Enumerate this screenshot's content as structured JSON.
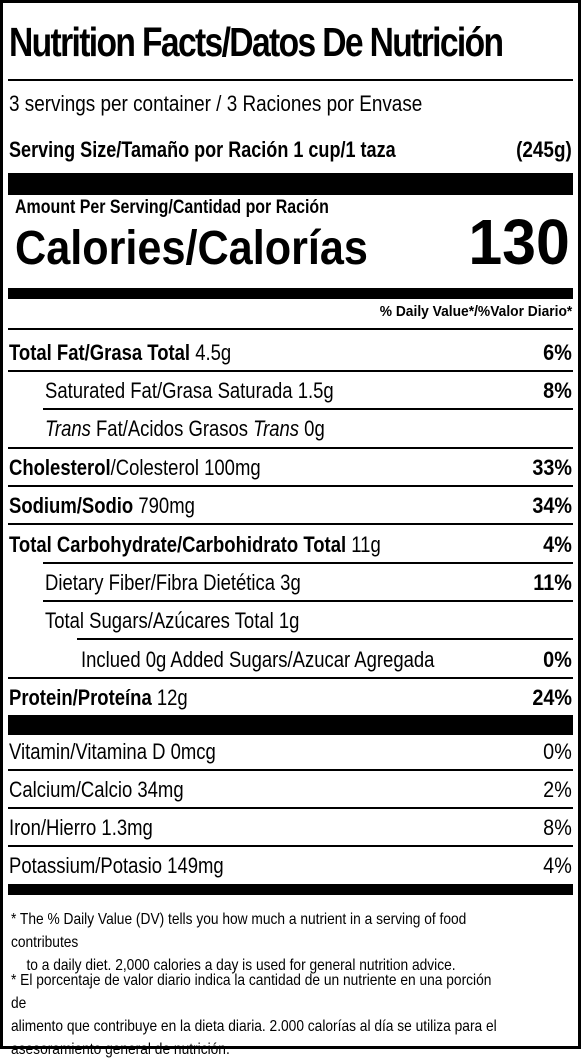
{
  "title": "Nutrition Facts/Datos De Nutrición",
  "servings": "3 servings per container / 3 Raciones por Envase",
  "serving_size": {
    "label": "Serving Size/Tamaño por Ración 1 cup/1 taza",
    "amount": "(245g)"
  },
  "amount_per": "Amount Per Serving/Cantidad por Ración",
  "calories": {
    "label": "Calories/Calorías",
    "value": "130"
  },
  "dv_header": "% Daily Value*/%Valor Diario*",
  "nutrients": {
    "total_fat": {
      "name": "Total Fat/Grasa Total",
      "amount": "4.5g",
      "pct": "6%"
    },
    "sat_fat": {
      "name": "Saturated Fat/Grasa Saturada",
      "amount": "1.5g",
      "pct": "8%"
    },
    "trans_fat": {
      "w1": "Trans",
      "mid": "Fat/Acidos Grasos",
      "w2": "Trans",
      "amount": "0g"
    },
    "cholesterol": {
      "name": "Cholesterol",
      "rest": "/Colesterol 100mg",
      "pct": "33%"
    },
    "sodium": {
      "name": "Sodium/Sodio",
      "amount": "790mg",
      "pct": "34%"
    },
    "carbs": {
      "name": "Total Carbohydrate/Carbohidrato Total",
      "amount": "11g",
      "pct": "4%"
    },
    "fiber": {
      "name": "Dietary Fiber/Fibra Dietética 3g",
      "pct": "11%"
    },
    "sugars": {
      "name": "Total Sugars/Azúcares Total 1g"
    },
    "added_sugars": {
      "name": "Inclued 0g Added Sugars/Azucar Agregada",
      "pct": "0%"
    },
    "protein": {
      "name": "Protein/Proteína",
      "amount": "12g",
      "pct": "24%"
    }
  },
  "vitamins": [
    {
      "name": "Vitamin/Vitamina D 0mcg",
      "pct": "0%"
    },
    {
      "name": "Calcium/Calcio 34mg",
      "pct": "2%"
    },
    {
      "name": "Iron/Hierro 1.3mg",
      "pct": "8%"
    },
    {
      "name": "Potassium/Potasio 149mg",
      "pct": "4%"
    }
  ],
  "footnotes": {
    "en_line1": "* The % Daily Value (DV) tells you how much a nutrient in a serving of food contributes",
    "en_line2": "to a daily diet. 2,000 calories a day is used for general nutrition advice.",
    "es_line1": "* El porcentaje de valor diario indica la cantidad de un nutriente en una porción de",
    "es_line2": "alimento que contribuye en la dieta diaria. 2.000 calorías al día se utiliza para el",
    "es_line3": "asesoramiento general de nutrición."
  }
}
